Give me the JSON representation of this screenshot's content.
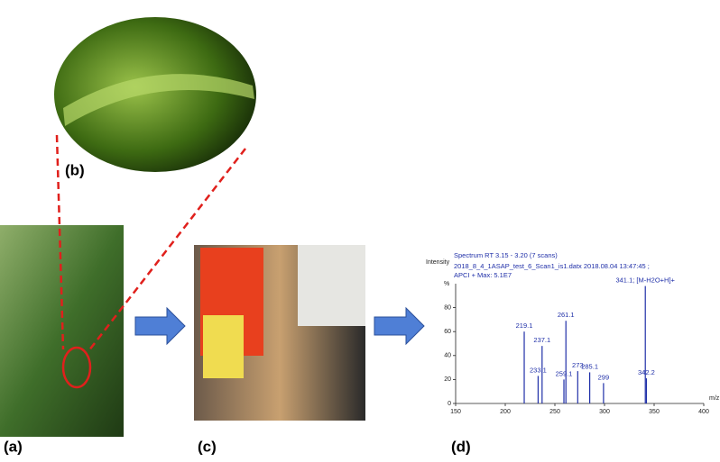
{
  "panels": {
    "a": "(a)",
    "b": "(b)",
    "c": "(c)",
    "d": "(d)"
  },
  "spectrum": {
    "y_axis_label": "Intensity",
    "header": [
      "Spectrum RT 3.15 - 3.20 (7 scans)",
      "2018_8_4_1ASAP_test_6_Scan1_is1.datx 2018.08.04 13:47:45 ;",
      "APCI + Max: 5.1E7"
    ],
    "y_unit": "%",
    "x_axis_label": "m/z",
    "xlim": [
      150,
      400
    ],
    "xticks": [
      150,
      200,
      250,
      300,
      350,
      400
    ],
    "ylim": [
      0,
      100
    ],
    "yticks": [
      0,
      20,
      40,
      60,
      80
    ],
    "color": "#1f2fa8",
    "peaks": [
      {
        "mz": 219.1,
        "intensity": 60
      },
      {
        "mz": 233.1,
        "intensity": 23
      },
      {
        "mz": 237.1,
        "intensity": 48
      },
      {
        "mz": 259.1,
        "intensity": 20
      },
      {
        "mz": 261.1,
        "intensity": 69
      },
      {
        "mz": 273.0,
        "intensity": 27
      },
      {
        "mz": 285.1,
        "intensity": 26
      },
      {
        "mz": 299.0,
        "intensity": 17
      },
      {
        "mz": 341.1,
        "intensity": 98,
        "label": "341.1; [M-H2O+H]+"
      },
      {
        "mz": 342.2,
        "intensity": 21
      }
    ]
  }
}
